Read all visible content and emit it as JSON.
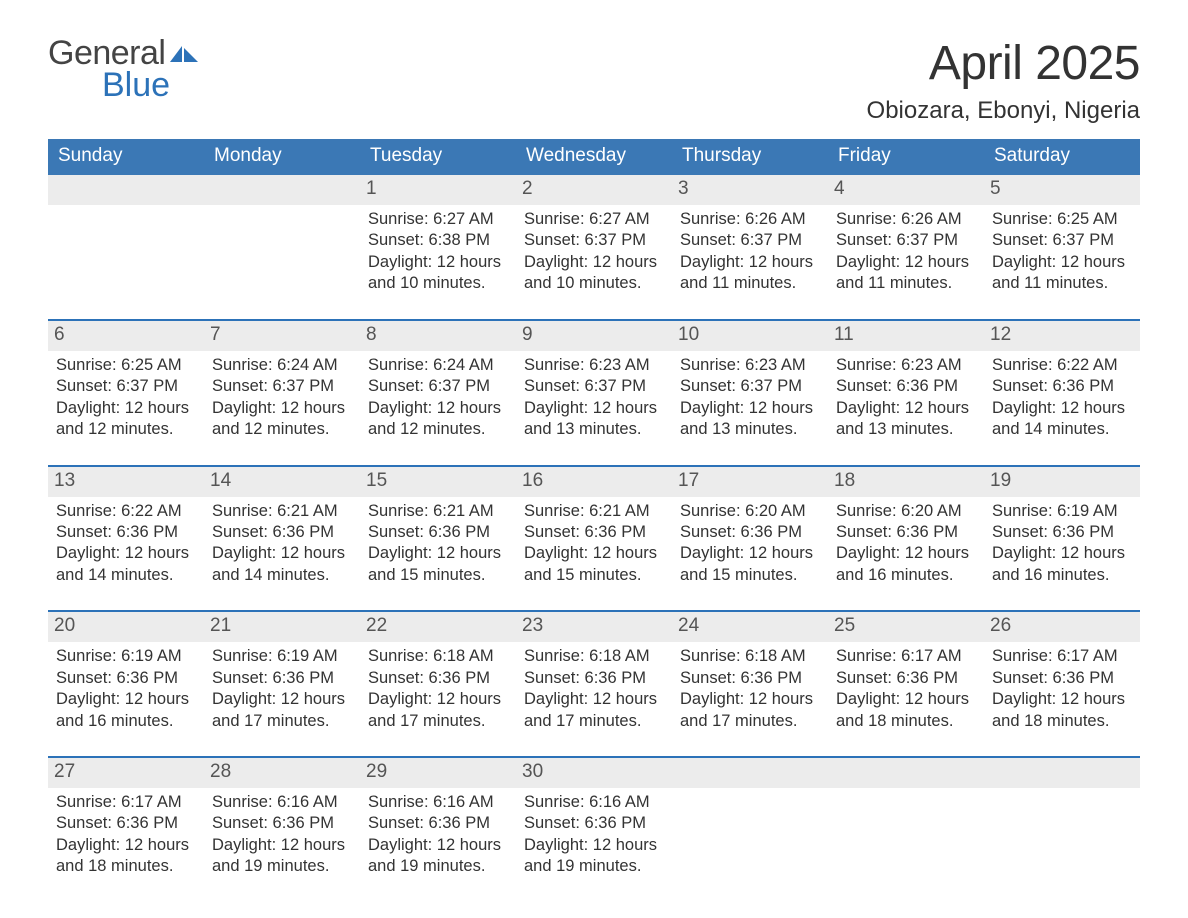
{
  "brand": {
    "word1": "General",
    "word2": "Blue",
    "flag_color": "#2c72b8"
  },
  "title": "April 2025",
  "location": "Obiozara, Ebonyi, Nigeria",
  "colors": {
    "header_bg": "#3b78b5",
    "header_text": "#ffffff",
    "accent": "#2c72b8",
    "day_bar_bg": "#ececec",
    "text": "#333333",
    "background": "#ffffff"
  },
  "weekdays": [
    "Sunday",
    "Monday",
    "Tuesday",
    "Wednesday",
    "Thursday",
    "Friday",
    "Saturday"
  ],
  "weeks": [
    [
      {
        "empty": true
      },
      {
        "empty": true
      },
      {
        "day": "1",
        "sunrise": "6:27 AM",
        "sunset": "6:38 PM",
        "daylight_h": 12,
        "daylight_m": 10
      },
      {
        "day": "2",
        "sunrise": "6:27 AM",
        "sunset": "6:37 PM",
        "daylight_h": 12,
        "daylight_m": 10
      },
      {
        "day": "3",
        "sunrise": "6:26 AM",
        "sunset": "6:37 PM",
        "daylight_h": 12,
        "daylight_m": 11
      },
      {
        "day": "4",
        "sunrise": "6:26 AM",
        "sunset": "6:37 PM",
        "daylight_h": 12,
        "daylight_m": 11
      },
      {
        "day": "5",
        "sunrise": "6:25 AM",
        "sunset": "6:37 PM",
        "daylight_h": 12,
        "daylight_m": 11
      }
    ],
    [
      {
        "day": "6",
        "sunrise": "6:25 AM",
        "sunset": "6:37 PM",
        "daylight_h": 12,
        "daylight_m": 12
      },
      {
        "day": "7",
        "sunrise": "6:24 AM",
        "sunset": "6:37 PM",
        "daylight_h": 12,
        "daylight_m": 12
      },
      {
        "day": "8",
        "sunrise": "6:24 AM",
        "sunset": "6:37 PM",
        "daylight_h": 12,
        "daylight_m": 12
      },
      {
        "day": "9",
        "sunrise": "6:23 AM",
        "sunset": "6:37 PM",
        "daylight_h": 12,
        "daylight_m": 13
      },
      {
        "day": "10",
        "sunrise": "6:23 AM",
        "sunset": "6:37 PM",
        "daylight_h": 12,
        "daylight_m": 13
      },
      {
        "day": "11",
        "sunrise": "6:23 AM",
        "sunset": "6:36 PM",
        "daylight_h": 12,
        "daylight_m": 13
      },
      {
        "day": "12",
        "sunrise": "6:22 AM",
        "sunset": "6:36 PM",
        "daylight_h": 12,
        "daylight_m": 14
      }
    ],
    [
      {
        "day": "13",
        "sunrise": "6:22 AM",
        "sunset": "6:36 PM",
        "daylight_h": 12,
        "daylight_m": 14
      },
      {
        "day": "14",
        "sunrise": "6:21 AM",
        "sunset": "6:36 PM",
        "daylight_h": 12,
        "daylight_m": 14
      },
      {
        "day": "15",
        "sunrise": "6:21 AM",
        "sunset": "6:36 PM",
        "daylight_h": 12,
        "daylight_m": 15
      },
      {
        "day": "16",
        "sunrise": "6:21 AM",
        "sunset": "6:36 PM",
        "daylight_h": 12,
        "daylight_m": 15
      },
      {
        "day": "17",
        "sunrise": "6:20 AM",
        "sunset": "6:36 PM",
        "daylight_h": 12,
        "daylight_m": 15
      },
      {
        "day": "18",
        "sunrise": "6:20 AM",
        "sunset": "6:36 PM",
        "daylight_h": 12,
        "daylight_m": 16
      },
      {
        "day": "19",
        "sunrise": "6:19 AM",
        "sunset": "6:36 PM",
        "daylight_h": 12,
        "daylight_m": 16
      }
    ],
    [
      {
        "day": "20",
        "sunrise": "6:19 AM",
        "sunset": "6:36 PM",
        "daylight_h": 12,
        "daylight_m": 16
      },
      {
        "day": "21",
        "sunrise": "6:19 AM",
        "sunset": "6:36 PM",
        "daylight_h": 12,
        "daylight_m": 17
      },
      {
        "day": "22",
        "sunrise": "6:18 AM",
        "sunset": "6:36 PM",
        "daylight_h": 12,
        "daylight_m": 17
      },
      {
        "day": "23",
        "sunrise": "6:18 AM",
        "sunset": "6:36 PM",
        "daylight_h": 12,
        "daylight_m": 17
      },
      {
        "day": "24",
        "sunrise": "6:18 AM",
        "sunset": "6:36 PM",
        "daylight_h": 12,
        "daylight_m": 17
      },
      {
        "day": "25",
        "sunrise": "6:17 AM",
        "sunset": "6:36 PM",
        "daylight_h": 12,
        "daylight_m": 18
      },
      {
        "day": "26",
        "sunrise": "6:17 AM",
        "sunset": "6:36 PM",
        "daylight_h": 12,
        "daylight_m": 18
      }
    ],
    [
      {
        "day": "27",
        "sunrise": "6:17 AM",
        "sunset": "6:36 PM",
        "daylight_h": 12,
        "daylight_m": 18
      },
      {
        "day": "28",
        "sunrise": "6:16 AM",
        "sunset": "6:36 PM",
        "daylight_h": 12,
        "daylight_m": 19
      },
      {
        "day": "29",
        "sunrise": "6:16 AM",
        "sunset": "6:36 PM",
        "daylight_h": 12,
        "daylight_m": 19
      },
      {
        "day": "30",
        "sunrise": "6:16 AM",
        "sunset": "6:36 PM",
        "daylight_h": 12,
        "daylight_m": 19
      },
      {
        "empty": true
      },
      {
        "empty": true
      },
      {
        "empty": true
      }
    ]
  ],
  "labels": {
    "sunrise": "Sunrise:",
    "sunset": "Sunset:",
    "daylight_prefix": "Daylight:",
    "hours_word": "hours",
    "and_word": "and",
    "minutes_word": "minutes."
  }
}
